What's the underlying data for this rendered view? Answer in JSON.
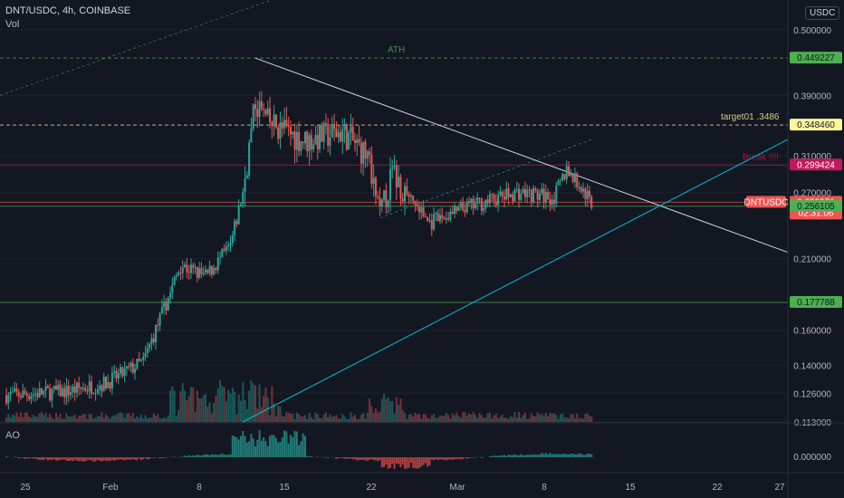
{
  "header": {
    "symbol": "DNT/USDC, 4h, COINBASE",
    "volume_label": "Vol",
    "currency": "USDC",
    "oscillator_label": "AO"
  },
  "colors": {
    "bg": "#131722",
    "up": "#26a69a",
    "down": "#ef5350",
    "text": "#b2b5be",
    "grid": "#1e222d"
  },
  "chart_data": {
    "type": "candlestick",
    "symbol": "DNT/USDC",
    "timeframe": "4h",
    "exchange": "COINBASE",
    "y_scale": "log",
    "ylim": [
      0.113,
      0.56
    ],
    "y_ticks": [
      "0.500000",
      "0.390000",
      "0.310000",
      "0.270000",
      "0.210000",
      "0.160000",
      "0.140000",
      "0.126000",
      "0.113000"
    ],
    "x_ticks": [
      "25",
      "Feb",
      "8",
      "15",
      "22",
      "Mar",
      "8",
      "15",
      "22",
      "27"
    ],
    "ao_ticks": [
      "0.000000"
    ],
    "price_levels": [
      {
        "label": "0.449227",
        "value": 0.449227,
        "note": "ATH",
        "color": "#4caf50"
      },
      {
        "label": "0.348460",
        "value": 0.34846,
        "note": "target01 .3486",
        "color": "#fff59d"
      },
      {
        "label": "0.299424",
        "value": 0.299424,
        "note": "Break !!!!",
        "color": "#c2185b"
      },
      {
        "label": "0.259971",
        "value": 0.259971,
        "note": "DNTUSDC",
        "color": "#ef5350",
        "countdown": "02:31:06"
      },
      {
        "label": "0.256105",
        "value": 0.256105,
        "color": "#4caf50"
      },
      {
        "label": "0.177788",
        "value": 0.177788,
        "color": "#4caf50"
      }
    ],
    "price_path": [
      {
        "date": "Jan 23",
        "price": 0.125
      },
      {
        "date": "Jan 28",
        "price": 0.127
      },
      {
        "date": "Jan 31",
        "price": 0.131
      },
      {
        "date": "Feb 3",
        "price": 0.142
      },
      {
        "date": "Feb 5",
        "price": 0.181
      },
      {
        "date": "Feb 6",
        "price": 0.205
      },
      {
        "date": "Feb 8",
        "price": 0.196
      },
      {
        "date": "Feb 10",
        "price": 0.22
      },
      {
        "date": "Feb 11",
        "price": 0.27
      },
      {
        "date": "Feb 12",
        "price": 0.38
      },
      {
        "date": "Feb 13",
        "price": 0.352
      },
      {
        "date": "Feb 16",
        "price": 0.328
      },
      {
        "date": "Feb 19",
        "price": 0.34
      },
      {
        "date": "Feb 21",
        "price": 0.31
      },
      {
        "date": "Feb 22",
        "price": 0.245
      },
      {
        "date": "Feb 23",
        "price": 0.29
      },
      {
        "date": "Feb 26",
        "price": 0.24
      },
      {
        "date": "Mar 1",
        "price": 0.255
      },
      {
        "date": "Mar 5",
        "price": 0.27
      },
      {
        "date": "Mar 8",
        "price": 0.265
      },
      {
        "date": "Mar 9",
        "price": 0.295
      },
      {
        "date": "Mar 11",
        "price": 0.26
      }
    ]
  }
}
